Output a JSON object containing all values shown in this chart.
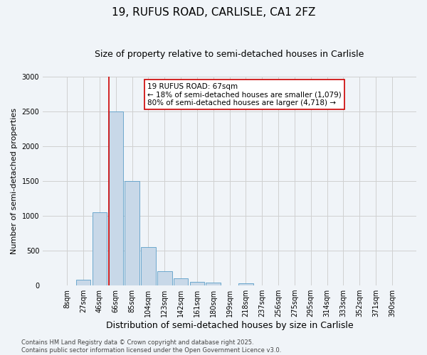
{
  "title1": "19, RUFUS ROAD, CARLISLE, CA1 2FZ",
  "title2": "Size of property relative to semi-detached houses in Carlisle",
  "xlabel": "Distribution of semi-detached houses by size in Carlisle",
  "ylabel": "Number of semi-detached properties",
  "categories": [
    "8sqm",
    "27sqm",
    "46sqm",
    "66sqm",
    "85sqm",
    "104sqm",
    "123sqm",
    "142sqm",
    "161sqm",
    "180sqm",
    "199sqm",
    "218sqm",
    "237sqm",
    "256sqm",
    "275sqm",
    "295sqm",
    "314sqm",
    "333sqm",
    "352sqm",
    "371sqm",
    "390sqm"
  ],
  "values": [
    0,
    80,
    1050,
    2500,
    1500,
    550,
    200,
    100,
    50,
    40,
    0,
    30,
    0,
    0,
    0,
    0,
    0,
    0,
    0,
    0,
    0
  ],
  "bar_color": "#c8d8e8",
  "bar_edge_color": "#5a9ec8",
  "highlight_index": 3,
  "highlight_line_color": "#cc0000",
  "annotation_text": "19 RUFUS ROAD: 67sqm\n← 18% of semi-detached houses are smaller (1,079)\n80% of semi-detached houses are larger (4,718) →",
  "annotation_box_color": "#ffffff",
  "annotation_box_edge_color": "#cc0000",
  "ylim": [
    0,
    3000
  ],
  "yticks": [
    0,
    500,
    1000,
    1500,
    2000,
    2500,
    3000
  ],
  "grid_color": "#d0d0d0",
  "background_color": "#f0f4f8",
  "footer1": "Contains HM Land Registry data © Crown copyright and database right 2025.",
  "footer2": "Contains public sector information licensed under the Open Government Licence v3.0.",
  "title1_fontsize": 11,
  "title2_fontsize": 9,
  "xlabel_fontsize": 9,
  "ylabel_fontsize": 8,
  "tick_fontsize": 7,
  "footer_fontsize": 6,
  "annotation_fontsize": 7.5
}
